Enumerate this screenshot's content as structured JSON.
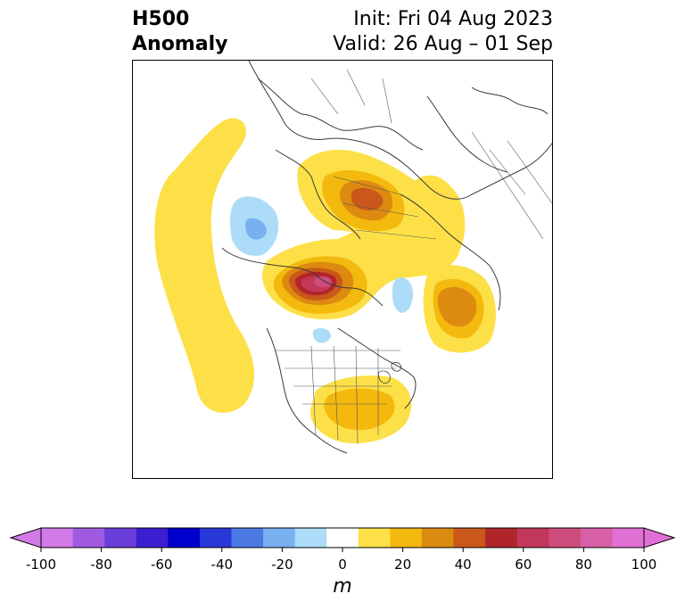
{
  "title": {
    "left_line1": "H500",
    "left_line2": "Anomaly",
    "right_line1": "Init: Fri 04 Aug 2023",
    "right_line2": "Valid: 26 Aug – 01 Sep"
  },
  "colorbar": {
    "unit": "m",
    "tick_labels": [
      "-100",
      "-80",
      "-60",
      "-40",
      "-20",
      "0",
      "20",
      "40",
      "60",
      "80",
      "100"
    ],
    "colors": [
      "#d27ae8",
      "#a05ae0",
      "#6a3ed8",
      "#3a1ed0",
      "#0000cc",
      "#2838d8",
      "#4c78e4",
      "#78b0f0",
      "#acdcf8",
      "#ffffff",
      "#fde047",
      "#f3b90e",
      "#dd8a10",
      "#c9581a",
      "#b0252a",
      "#c2385a",
      "#cd4c7c",
      "#d760a6",
      "#e070d4"
    ],
    "extend_low_color": "#d27ae8",
    "extend_high_color": "#e070d4"
  }
}
